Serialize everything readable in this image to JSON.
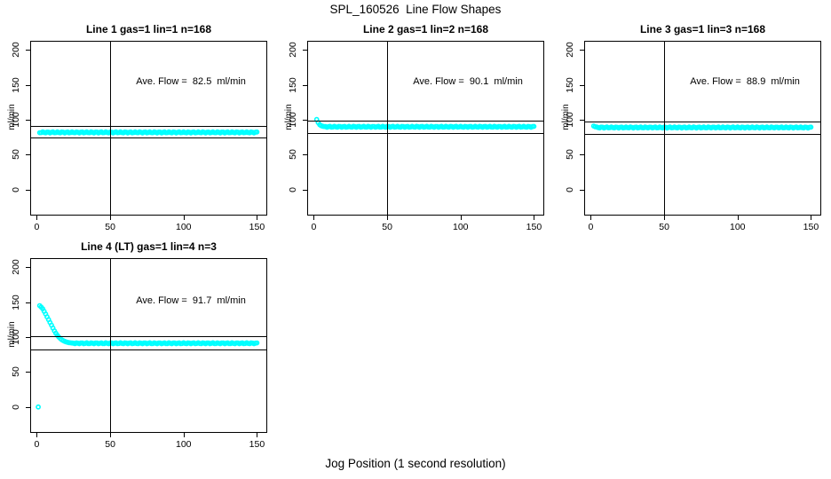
{
  "page": {
    "title": "SPL_160526  Line Flow Shapes",
    "xlabel": "Jog Position (1 second resolution)",
    "background_color": "#ffffff",
    "point_color": "#00ffff",
    "line_color": "#000000"
  },
  "chart_data": [
    {
      "type": "scatter",
      "title": "Line 1 gas=1 lin=1 n=168",
      "annotation": "Ave. Flow =  82.5  ml/min",
      "ave_flow_ml_min": 82.5,
      "ylabel": "ml/min",
      "xticks": [
        0,
        50,
        100,
        150
      ],
      "yticks": [
        0,
        50,
        100,
        150,
        200
      ],
      "xlim": [
        -4.5,
        157
      ],
      "ylim": [
        -37,
        213
      ],
      "grid": "off",
      "vline_x": 50,
      "hlines": [
        90.75,
        74.25
      ],
      "annotation_xy": [
        105,
        155
      ],
      "head_points": [],
      "flat_band": {
        "x_start": 2,
        "x_end": 150,
        "level": 82,
        "jitter": 0.7
      },
      "outliers": []
    },
    {
      "type": "scatter",
      "title": "Line 2 gas=1 lin=2 n=168",
      "annotation": "Ave. Flow =  90.1  ml/min",
      "ave_flow_ml_min": 90.1,
      "ylabel": "ml/min",
      "xticks": [
        0,
        50,
        100,
        150
      ],
      "yticks": [
        0,
        50,
        100,
        150,
        200
      ],
      "xlim": [
        -4.5,
        157
      ],
      "ylim": [
        -37,
        213
      ],
      "grid": "off",
      "vline_x": 50,
      "hlines": [
        99.11,
        81.09
      ],
      "annotation_xy": [
        105,
        155
      ],
      "head_points": [
        [
          2,
          100.5
        ],
        [
          3,
          96
        ],
        [
          4,
          93
        ],
        [
          5,
          91.5
        ],
        [
          6,
          90.8
        ]
      ],
      "flat_band": {
        "x_start": 7,
        "x_end": 150,
        "level": 90,
        "jitter": 0.7
      },
      "outliers": []
    },
    {
      "type": "scatter",
      "title": "Line 3 gas=1 lin=3 n=168",
      "annotation": "Ave. Flow =  88.9  ml/min",
      "ave_flow_ml_min": 88.9,
      "ylabel": "ml/min",
      "xticks": [
        0,
        50,
        100,
        150
      ],
      "yticks": [
        0,
        50,
        100,
        150,
        200
      ],
      "xlim": [
        -4.5,
        157
      ],
      "ylim": [
        -37,
        213
      ],
      "grid": "off",
      "vline_x": 50,
      "hlines": [
        97.79,
        80.01
      ],
      "annotation_xy": [
        105,
        155
      ],
      "head_points": [
        [
          2,
          91
        ],
        [
          3,
          90
        ]
      ],
      "flat_band": {
        "x_start": 4,
        "x_end": 150,
        "level": 89,
        "jitter": 0.7
      },
      "outliers": []
    },
    {
      "type": "scatter",
      "title": "Line 4 (LT) gas=1 lin=4 n=3",
      "annotation": "Ave. Flow =  91.7  ml/min",
      "ave_flow_ml_min": 91.7,
      "ylabel": "ml/min",
      "xticks": [
        0,
        50,
        100,
        150
      ],
      "yticks": [
        0,
        50,
        100,
        150,
        200
      ],
      "xlim": [
        -4.5,
        157
      ],
      "ylim": [
        -37,
        213
      ],
      "grid": "off",
      "vline_x": 50,
      "hlines": [
        100.87,
        82.53
      ],
      "annotation_xy": [
        105,
        152
      ],
      "head_points": [
        [
          2,
          145
        ],
        [
          3,
          143
        ],
        [
          4,
          140.5
        ],
        [
          5,
          137
        ],
        [
          6,
          133
        ],
        [
          7,
          129
        ],
        [
          8,
          125
        ],
        [
          9,
          121
        ],
        [
          10,
          117
        ],
        [
          11,
          113
        ],
        [
          12,
          109
        ],
        [
          13,
          105.5
        ],
        [
          14,
          102.5
        ],
        [
          15,
          100
        ],
        [
          16,
          98
        ],
        [
          17,
          96.3
        ],
        [
          18,
          95
        ],
        [
          19,
          94
        ],
        [
          20,
          93.2
        ],
        [
          21,
          92.6
        ],
        [
          22,
          92.1
        ],
        [
          23,
          91.8
        ],
        [
          24,
          91.5
        ],
        [
          25,
          91.3
        ]
      ],
      "flat_band": {
        "x_start": 26,
        "x_end": 150,
        "level": 91.2,
        "jitter": 0.7
      },
      "outliers": [
        [
          1,
          0
        ]
      ]
    }
  ]
}
